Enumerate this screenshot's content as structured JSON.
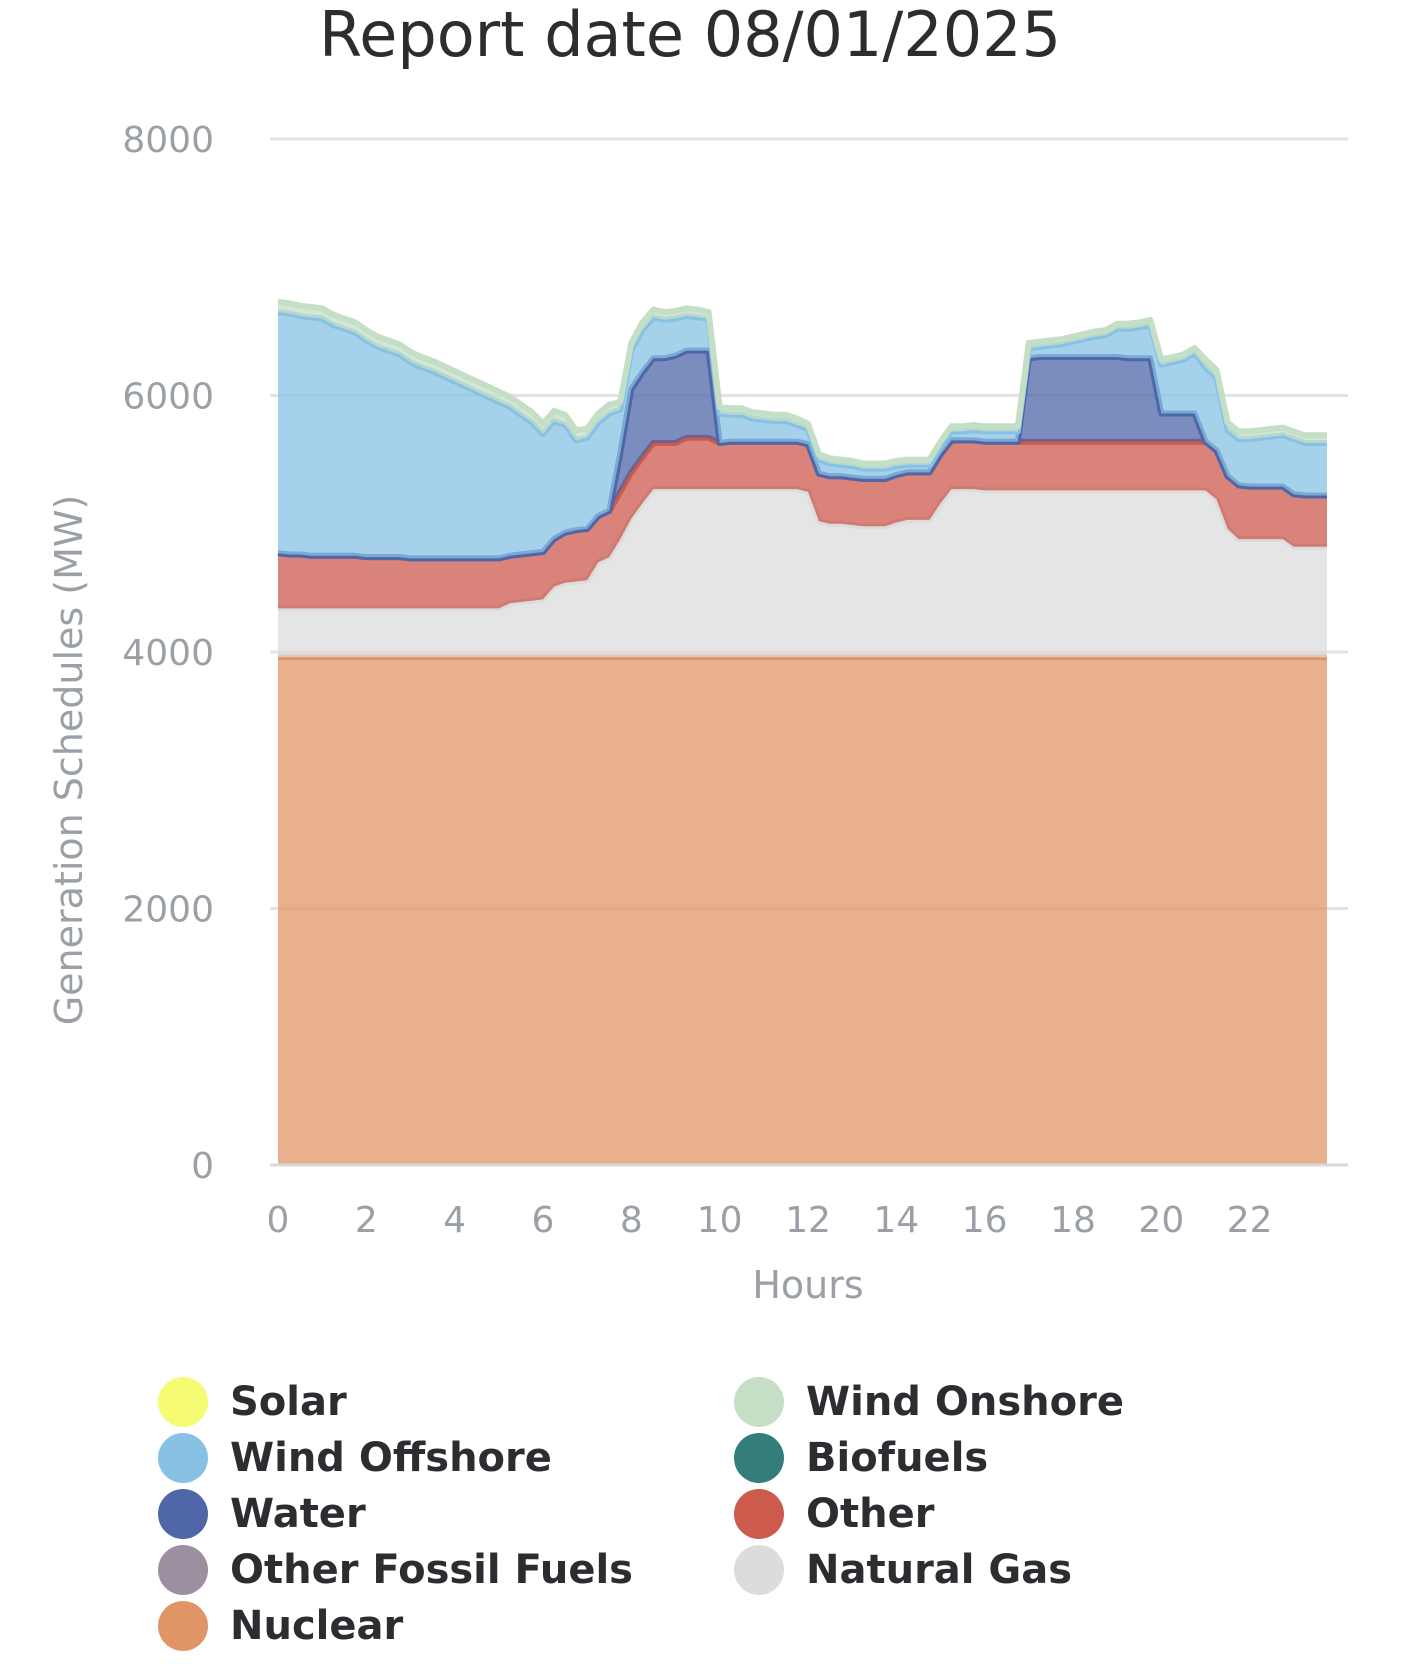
{
  "chart_data": {
    "type": "area",
    "stacked": true,
    "title": "Report date 08/01/2025",
    "xlabel": "Hours",
    "ylabel": "Generation Schedules (MW)",
    "ylim": [
      0,
      8000
    ],
    "xlim": [
      0,
      24
    ],
    "yticks": [
      0,
      2000,
      4000,
      6000,
      8000
    ],
    "xticks": [
      0,
      2,
      4,
      6,
      8,
      10,
      12,
      14,
      16,
      18,
      20,
      22
    ],
    "grid": true,
    "legend_position": "bottom",
    "x": [
      0,
      0.25,
      0.5,
      0.75,
      1,
      1.25,
      1.5,
      1.75,
      2,
      2.25,
      2.5,
      2.75,
      3,
      3.25,
      3.5,
      3.75,
      4,
      4.25,
      4.5,
      4.75,
      5,
      5.25,
      5.5,
      5.75,
      6,
      6.25,
      6.5,
      6.75,
      7,
      7.25,
      7.5,
      7.75,
      8,
      8.25,
      8.5,
      8.75,
      9,
      9.25,
      9.5,
      9.75,
      10,
      10.25,
      10.5,
      10.75,
      11,
      11.25,
      11.5,
      11.75,
      12,
      12.25,
      12.5,
      12.75,
      13,
      13.25,
      13.5,
      13.75,
      14,
      14.25,
      14.5,
      14.75,
      15,
      15.25,
      15.5,
      15.75,
      16,
      16.25,
      16.5,
      16.75,
      17,
      17.25,
      17.5,
      17.75,
      18,
      18.25,
      18.5,
      18.75,
      19,
      19.25,
      19.5,
      19.75,
      20,
      20.25,
      20.5,
      20.75,
      21,
      21.25,
      21.5,
      21.75,
      22,
      22.25,
      22.5,
      22.75,
      23,
      23.25,
      23.5,
      23.75
    ],
    "series": [
      {
        "name": "Nuclear",
        "color": "#e09566",
        "values": [
          3960,
          3960,
          3960,
          3960,
          3960,
          3960,
          3960,
          3960,
          3960,
          3960,
          3960,
          3960,
          3960,
          3960,
          3960,
          3960,
          3960,
          3960,
          3960,
          3960,
          3960,
          3960,
          3960,
          3960,
          3960,
          3960,
          3960,
          3960,
          3960,
          3960,
          3960,
          3960,
          3960,
          3960,
          3960,
          3960,
          3960,
          3960,
          3960,
          3960,
          3960,
          3960,
          3960,
          3960,
          3960,
          3960,
          3960,
          3960,
          3960,
          3960,
          3960,
          3960,
          3960,
          3960,
          3960,
          3960,
          3960,
          3960,
          3960,
          3960,
          3960,
          3960,
          3960,
          3960,
          3960,
          3960,
          3960,
          3960,
          3960,
          3960,
          3960,
          3960,
          3960,
          3960,
          3960,
          3960,
          3960,
          3960,
          3960,
          3960,
          3960,
          3960,
          3960,
          3960,
          3960,
          3960,
          3960,
          3960,
          3960,
          3960,
          3960,
          3960,
          3960,
          3960,
          3960,
          3960
        ]
      },
      {
        "name": "Natural Gas",
        "color": "#dcdcdc",
        "values": [
          380,
          380,
          380,
          380,
          380,
          380,
          380,
          380,
          380,
          380,
          380,
          380,
          380,
          380,
          380,
          380,
          380,
          380,
          380,
          380,
          380,
          420,
          430,
          440,
          450,
          550,
          580,
          590,
          600,
          740,
          780,
          920,
          1080,
          1200,
          1310,
          1310,
          1310,
          1310,
          1310,
          1310,
          1310,
          1310,
          1310,
          1310,
          1310,
          1310,
          1310,
          1310,
          1290,
          1060,
          1040,
          1040,
          1030,
          1020,
          1020,
          1020,
          1050,
          1070,
          1070,
          1070,
          1200,
          1310,
          1310,
          1310,
          1300,
          1300,
          1300,
          1300,
          1300,
          1300,
          1300,
          1300,
          1300,
          1300,
          1300,
          1300,
          1300,
          1300,
          1300,
          1300,
          1300,
          1300,
          1300,
          1300,
          1300,
          1230,
          1000,
          920,
          920,
          920,
          920,
          920,
          860,
          860,
          860,
          860
        ]
      },
      {
        "name": "Other Fossil Fuels",
        "color": "#9b8fa0",
        "values": [
          0,
          0,
          0,
          0,
          0,
          0,
          0,
          0,
          0,
          0,
          0,
          0,
          0,
          0,
          0,
          0,
          0,
          0,
          0,
          0,
          0,
          0,
          0,
          0,
          0,
          0,
          0,
          0,
          0,
          0,
          0,
          0,
          0,
          0,
          0,
          0,
          0,
          0,
          0,
          0,
          0,
          0,
          0,
          0,
          0,
          0,
          0,
          0,
          0,
          0,
          0,
          0,
          0,
          0,
          0,
          0,
          0,
          0,
          0,
          0,
          0,
          0,
          0,
          0,
          0,
          0,
          0,
          0,
          0,
          0,
          0,
          0,
          0,
          0,
          0,
          0,
          0,
          0,
          0,
          0,
          0,
          0,
          0,
          0,
          0,
          0,
          0,
          0,
          0,
          0,
          0,
          0,
          0,
          0,
          0,
          0
        ]
      },
      {
        "name": "Other",
        "color": "#cc5a4d",
        "values": [
          430,
          420,
          420,
          410,
          410,
          410,
          410,
          410,
          400,
          400,
          400,
          400,
          390,
          390,
          390,
          390,
          390,
          390,
          390,
          390,
          390,
          370,
          370,
          370,
          370,
          370,
          390,
          400,
          400,
          360,
          360,
          370,
          360,
          360,
          360,
          360,
          360,
          400,
          400,
          400,
          360,
          370,
          370,
          370,
          370,
          370,
          370,
          370,
          370,
          370,
          370,
          370,
          370,
          370,
          370,
          370,
          370,
          370,
          370,
          370,
          380,
          380,
          380,
          380,
          380,
          380,
          380,
          380,
          380,
          380,
          380,
          380,
          380,
          380,
          380,
          380,
          380,
          380,
          380,
          380,
          380,
          380,
          380,
          380,
          380,
          380,
          410,
          420,
          410,
          410,
          410,
          410,
          410,
          400,
          400,
          400
        ]
      },
      {
        "name": "Water",
        "color": "#4f66a8",
        "values": [
          0,
          0,
          0,
          0,
          0,
          0,
          0,
          0,
          0,
          0,
          0,
          0,
          0,
          0,
          0,
          0,
          0,
          0,
          0,
          0,
          0,
          0,
          0,
          0,
          0,
          0,
          0,
          0,
          0,
          0,
          0,
          300,
          650,
          660,
          660,
          660,
          680,
          680,
          680,
          680,
          0,
          0,
          0,
          0,
          0,
          0,
          0,
          0,
          0,
          0,
          0,
          0,
          0,
          0,
          0,
          0,
          0,
          0,
          0,
          0,
          0,
          0,
          0,
          0,
          0,
          0,
          0,
          0,
          650,
          660,
          660,
          660,
          660,
          660,
          660,
          660,
          660,
          650,
          650,
          650,
          220,
          220,
          220,
          220,
          0,
          0,
          0,
          0,
          0,
          0,
          0,
          0,
          0,
          0,
          0,
          0
        ]
      },
      {
        "name": "Wind Offshore",
        "color": "#87c2e4",
        "values": [
          1880,
          1880,
          1860,
          1860,
          1850,
          1800,
          1770,
          1740,
          1690,
          1640,
          1610,
          1580,
          1530,
          1490,
          1460,
          1420,
          1380,
          1340,
          1300,
          1260,
          1220,
          1160,
          1090,
          1020,
          920,
          920,
          840,
          700,
          710,
          730,
          760,
          340,
          300,
          330,
          320,
          300,
          290,
          270,
          260,
          250,
          230,
          210,
          210,
          180,
          170,
          160,
          160,
          130,
          120,
          110,
          100,
          90,
          90,
          80,
          80,
          80,
          70,
          60,
          60,
          60,
          60,
          70,
          70,
          80,
          80,
          80,
          80,
          80,
          80,
          80,
          90,
          100,
          120,
          140,
          160,
          170,
          220,
          230,
          240,
          260,
          380,
          400,
          420,
          470,
          580,
          570,
          360,
          360,
          370,
          380,
          390,
          400,
          430,
          410,
          410,
          410
        ]
      },
      {
        "name": "Wind Onshore",
        "color": "#c5dfc6",
        "values": [
          80,
          80,
          80,
          80,
          80,
          80,
          80,
          80,
          80,
          80,
          80,
          80,
          80,
          80,
          80,
          80,
          80,
          80,
          80,
          80,
          80,
          80,
          80,
          80,
          80,
          80,
          80,
          80,
          70,
          70,
          70,
          60,
          60,
          60,
          60,
          60,
          60,
          60,
          60,
          50,
          50,
          50,
          50,
          50,
          50,
          50,
          50,
          50,
          40,
          40,
          40,
          40,
          40,
          40,
          40,
          40,
          40,
          40,
          40,
          40,
          40,
          40,
          40,
          40,
          40,
          40,
          40,
          40,
          40,
          40,
          40,
          40,
          40,
          40,
          40,
          40,
          40,
          40,
          40,
          40,
          40,
          40,
          40,
          40,
          60,
          60,
          60,
          60,
          60,
          60,
          60,
          60,
          60,
          60,
          60,
          60
        ]
      },
      {
        "name": "Biofuels",
        "color": "#337e7a",
        "values": [
          0,
          0,
          0,
          0,
          0,
          0,
          0,
          0,
          0,
          0,
          0,
          0,
          0,
          0,
          0,
          0,
          0,
          0,
          0,
          0,
          0,
          0,
          0,
          0,
          0,
          0,
          0,
          0,
          0,
          0,
          0,
          0,
          0,
          0,
          0,
          0,
          0,
          0,
          0,
          0,
          0,
          0,
          0,
          0,
          0,
          0,
          0,
          0,
          0,
          0,
          0,
          0,
          0,
          0,
          0,
          0,
          0,
          0,
          0,
          0,
          0,
          0,
          0,
          0,
          0,
          0,
          0,
          0,
          0,
          0,
          0,
          0,
          0,
          0,
          0,
          0,
          0,
          0,
          0,
          0,
          0,
          0,
          0,
          0,
          0,
          0,
          0,
          0,
          0,
          0,
          0,
          0,
          0,
          0,
          0,
          0
        ]
      },
      {
        "name": "Solar",
        "color": "#f5fb72",
        "values": [
          0,
          0,
          0,
          0,
          0,
          0,
          0,
          0,
          0,
          0,
          0,
          0,
          0,
          0,
          0,
          0,
          0,
          0,
          0,
          0,
          0,
          0,
          0,
          0,
          0,
          0,
          0,
          0,
          0,
          0,
          0,
          0,
          0,
          0,
          0,
          0,
          0,
          0,
          0,
          0,
          0,
          0,
          0,
          0,
          0,
          0,
          0,
          0,
          0,
          0,
          0,
          0,
          0,
          0,
          0,
          0,
          0,
          0,
          0,
          0,
          0,
          0,
          0,
          0,
          0,
          0,
          0,
          0,
          0,
          0,
          0,
          0,
          0,
          0,
          0,
          0,
          0,
          0,
          0,
          0,
          0,
          0,
          0,
          0,
          0,
          0,
          0,
          0,
          0,
          0,
          0,
          0,
          0,
          0,
          0,
          0
        ]
      }
    ],
    "legend": [
      "Solar",
      "Wind Onshore",
      "Wind Offshore",
      "Biofuels",
      "Water",
      "Other",
      "Other Fossil Fuels",
      "Natural Gas",
      "Nuclear"
    ]
  }
}
